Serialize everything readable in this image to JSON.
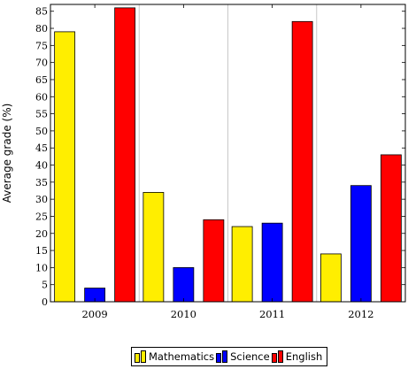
{
  "chart_data": {
    "type": "bar",
    "categories": [
      "2009",
      "2010",
      "2011",
      "2012"
    ],
    "series": [
      {
        "name": "Mathematics",
        "values": [
          79,
          32,
          22,
          14
        ],
        "color": "#ffee00"
      },
      {
        "name": "Science",
        "values": [
          4,
          10,
          23,
          34
        ],
        "color": "#0000ff"
      },
      {
        "name": "English",
        "values": [
          86,
          24,
          82,
          43
        ],
        "color": "#ff0000"
      }
    ],
    "title": "",
    "xlabel": "",
    "ylabel": "Average grade (%)",
    "ylim": [
      0,
      87
    ],
    "yticks": [
      0,
      5,
      10,
      15,
      20,
      25,
      30,
      35,
      40,
      45,
      50,
      55,
      60,
      65,
      70,
      75,
      80,
      85
    ],
    "grid": "vertical separators between categories",
    "legend_position": "bottom-center"
  }
}
